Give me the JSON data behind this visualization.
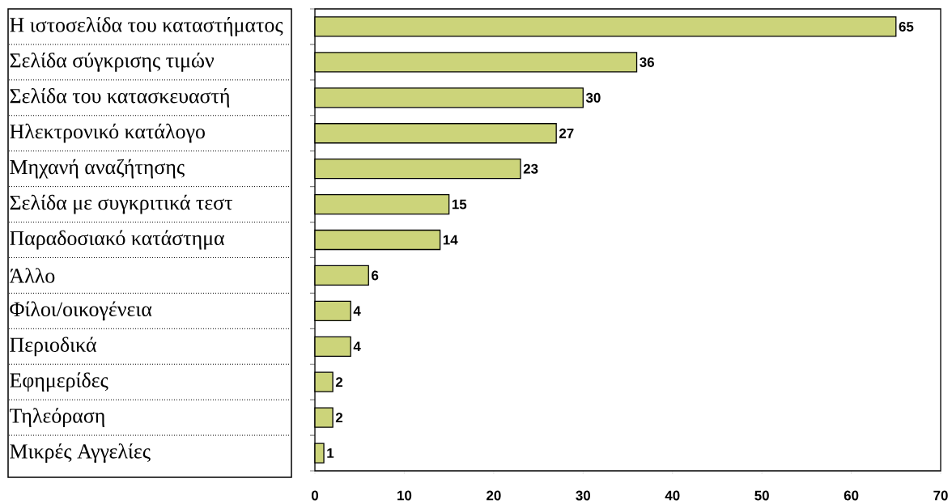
{
  "chart_data": {
    "type": "bar",
    "orientation": "horizontal",
    "categories": [
      "Η ιστοσελίδα του καταστήματος",
      "Σελίδα σύγκρισης τιμών",
      "Σελίδα του κατασκευαστή",
      "Ηλεκτρονικό κατάλογο",
      "Μηχανή αναζήτησης",
      "Σελίδα με συγκριτικά τεστ",
      "Παραδοσιακό κατάστημα",
      "Άλλο",
      "Φίλοι/οικογένεια",
      "Περιοδικά",
      "Εφημερίδες",
      "Τηλεόραση",
      "Μικρές Αγγελίες"
    ],
    "values": [
      65,
      36,
      30,
      27,
      23,
      15,
      14,
      6,
      4,
      4,
      2,
      2,
      1
    ],
    "color": "#ccd47a",
    "xlim": [
      0,
      70
    ],
    "xticks": [
      0,
      10,
      20,
      30,
      40,
      50,
      60,
      70
    ],
    "data_labels": true
  }
}
